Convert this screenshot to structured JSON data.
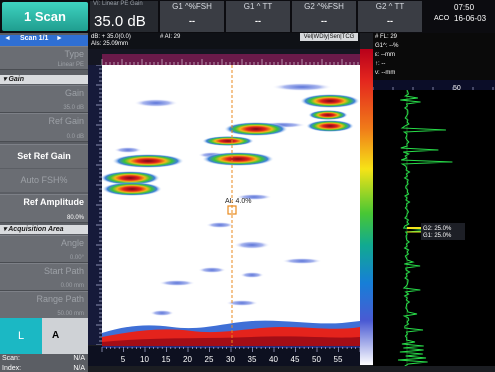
{
  "topbar": {
    "scan_title": "1 Scan",
    "gain_label": "Ví: Linear PE Gain",
    "gain_value": "35.0 dB",
    "gates": [
      {
        "label": "G1 ^%FSH",
        "value": "--"
      },
      {
        "label": "G1 ^ TT",
        "value": "--"
      },
      {
        "label": "G2 ^%FSH",
        "value": "--"
      },
      {
        "label": "G2 ^ TT",
        "value": "--"
      }
    ],
    "time": "07:50",
    "aco": "ACO",
    "date": "16-06-03"
  },
  "left_panel": {
    "scan_nav": {
      "prev": "◄",
      "label": "Scan 1/1",
      "next": "►"
    },
    "type": {
      "label": "Type",
      "value": "Linear PE"
    },
    "section_gain": "▾ Gain",
    "gain": {
      "label": "Gain",
      "value": "35.0 dB"
    },
    "ref_gain": {
      "label": "Ref Gain",
      "value": "0.0 dB"
    },
    "set_ref_gain": "Set Ref Gain",
    "auto_fsh": "Auto FSH%",
    "ref_amplitude": {
      "label": "Ref Amplitude",
      "value": "80.0%"
    },
    "section_acq": "▾ Acquisition Area",
    "angle": {
      "label": "Angle",
      "value": "0.00°"
    },
    "start_path": {
      "label": "Start Path",
      "value": "0.00 mm"
    },
    "range_path": {
      "label": "Range Path",
      "value": "50.00 mm"
    },
    "l_label": "L",
    "a_label": "A",
    "scan_info": {
      "label": "Scan:",
      "value": "N/A"
    },
    "index_info": {
      "label": "Index:",
      "value": "N/A"
    }
  },
  "scan_view": {
    "header_line1": "dB: + 35.0(0.0)",
    "header_line1b": "# AI: 29",
    "header_line2": "AIs: 25.09mm",
    "tags": "Vel|WDly|Sen|TCG",
    "cursor_label": "AI: 4.0%",
    "x_ticks": [
      "5",
      "10",
      "15",
      "20",
      "25",
      "30",
      "35",
      "40",
      "45",
      "50",
      "55"
    ]
  },
  "right_view": {
    "lines": [
      "# FL: 29",
      "G1^: --%",
      "ε: --mm",
      "↑: --",
      "ν: --mm"
    ],
    "ruler_tick": "50",
    "gate_readout": [
      "G2: 25.0%",
      "G1: 25.0%"
    ]
  },
  "colors": {
    "accent": "#2f6fd3",
    "title_teal": "#28b8a8",
    "cursor": "#e88a1d",
    "ascan_trace": "#28e04a",
    "gate_yellow": "#f2e51d"
  }
}
